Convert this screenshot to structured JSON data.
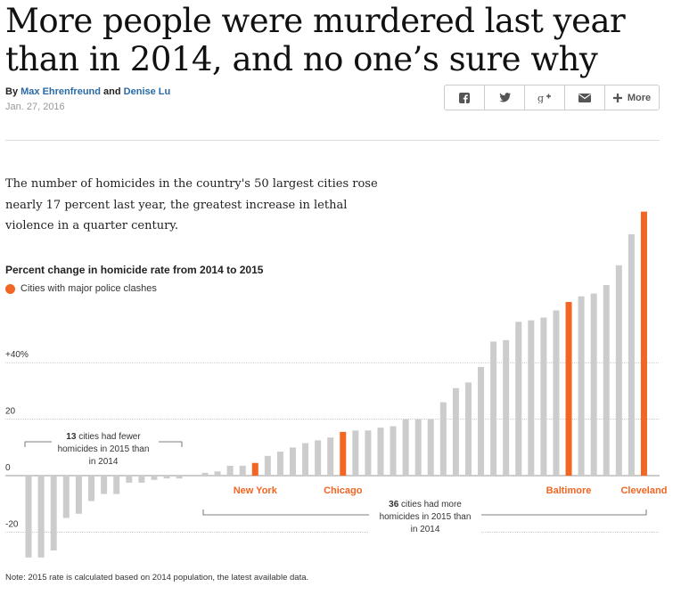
{
  "headline": "More people were murdered last year than in 2014, and no one’s sure why",
  "byline": {
    "prefix": "By",
    "author1": "Max Ehrenfreund",
    "conj": "and",
    "author2": "Denise Lu"
  },
  "date": "Jan. 27, 2016",
  "share": {
    "more_label": "More"
  },
  "intro": "The number of homicides in the country's 50 largest cities rose nearly 17 percent last year, the greatest increase in lethal violence in a quarter century.",
  "note": "Note: 2015 rate is calculated based on 2014 population, the latest available data.",
  "colors": {
    "highlight": "#f26522",
    "bar": "#cccccc",
    "link": "#2a6aa6"
  },
  "chart_data": {
    "type": "bar",
    "title": "Percent change in homicide rate from 2014 to 2015",
    "legend": "Cities with major police clashes",
    "ylim": [
      -30,
      95
    ],
    "ticks": [
      {
        "value": 40,
        "label": "+40%"
      },
      {
        "value": 20,
        "label": "20"
      },
      {
        "value": 0,
        "label": "0"
      },
      {
        "value": -20,
        "label": "-20"
      }
    ],
    "decreasing": [
      -29,
      -29,
      -26.5,
      -15,
      -13.5,
      -9,
      -6.5,
      -6.5,
      -2.5,
      -2.5,
      -1.5,
      -1,
      -1
    ],
    "increasing": [
      1,
      1.5,
      3.5,
      3.5,
      4.5,
      7,
      8.5,
      10,
      11.5,
      12.5,
      13.5,
      15.5,
      16,
      16,
      17,
      17.5,
      20,
      20,
      20,
      26,
      31,
      33,
      38.5,
      47.5,
      48,
      54.5,
      55,
      56,
      58.5,
      61.5,
      63.5,
      64.5,
      67.5,
      74.5,
      85.5,
      93.5
    ],
    "highlighted": [
      {
        "index": 4,
        "label": "New York"
      },
      {
        "index": 11,
        "label": "Chicago"
      },
      {
        "index": 29,
        "label": "Baltimore"
      },
      {
        "index": 35,
        "label": "Cleveland"
      }
    ],
    "annotations": {
      "fewer_count": "13",
      "fewer_text1": " cities had fewer",
      "fewer_text2": "homicides in 2015 than",
      "fewer_text3": "in 2014",
      "more_count": "36",
      "more_text1": " cities had more",
      "more_text2": "homicides in 2015 than",
      "more_text3": "in 2014"
    }
  }
}
